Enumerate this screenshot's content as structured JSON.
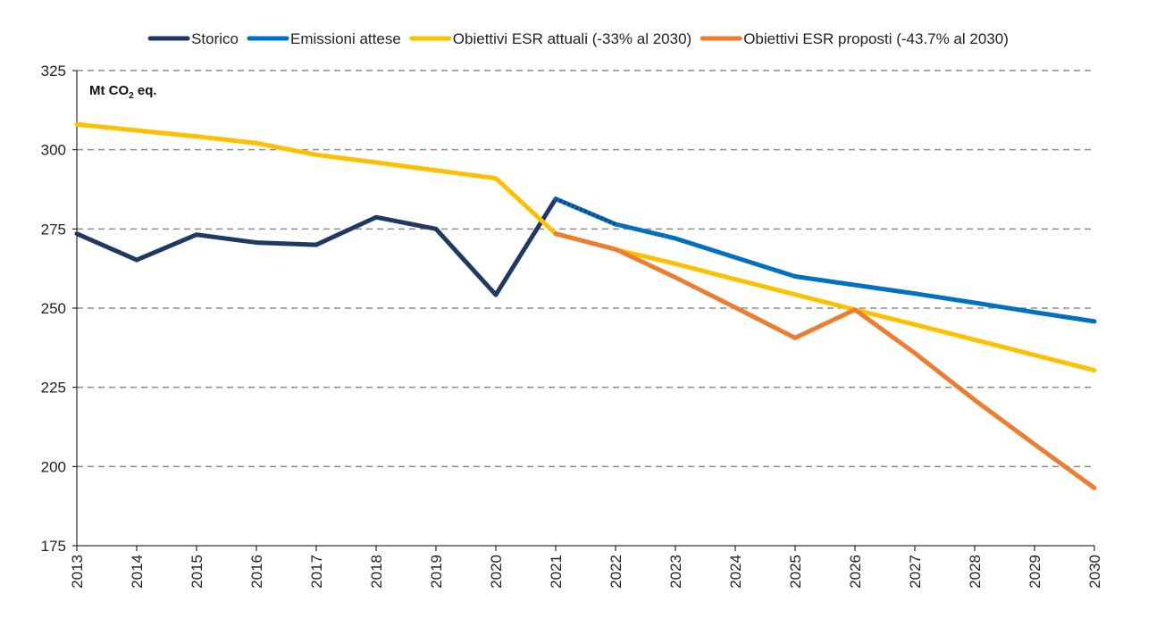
{
  "chart_data": {
    "type": "line",
    "unit_label": {
      "main": "Mt CO",
      "sub": "2",
      "suffix": " eq."
    },
    "x": [
      "2013",
      "2014",
      "2015",
      "2016",
      "2017",
      "2018",
      "2019",
      "2020",
      "2021",
      "2022",
      "2023",
      "2024",
      "2025",
      "2026",
      "2027",
      "2028",
      "2029",
      "2030"
    ],
    "ylim": [
      175,
      325
    ],
    "yticks": [
      175,
      200,
      225,
      250,
      275,
      300,
      325
    ],
    "grid": "horizontal dashed",
    "legend_position": "top",
    "series": [
      {
        "name": "Storico",
        "color": "#1f3864",
        "values": [
          273.5,
          265.2,
          273.2,
          270.7,
          270.0,
          278.7,
          275.0,
          254.2,
          284.5,
          null,
          null,
          null,
          null,
          null,
          null,
          null,
          null,
          null
        ]
      },
      {
        "name": "Emissioni attese",
        "color": "#0070c0",
        "values": [
          null,
          null,
          null,
          null,
          null,
          null,
          null,
          null,
          284.5,
          276.5,
          272.0,
          266.0,
          260.0,
          257.3,
          254.6,
          251.7,
          248.7,
          245.8
        ]
      },
      {
        "name": "Obiettivi ESR attuali (-33% al 2030)",
        "color": "#ffc000",
        "values": [
          308.0,
          306.1,
          304.2,
          302.1,
          298.4,
          296.0,
          293.5,
          291.0,
          273.5,
          268.5,
          264.0,
          259.1,
          254.3,
          249.5,
          244.8,
          240.0,
          235.2,
          230.4
        ]
      },
      {
        "name": "Obiettivi ESR proposti (-43.7% al 2030)",
        "color": "#ed7d31",
        "values": [
          null,
          null,
          null,
          null,
          null,
          null,
          null,
          null,
          273.5,
          268.6,
          259.7,
          250.2,
          240.6,
          249.5,
          235.8,
          221.0,
          207.0,
          193.2
        ]
      }
    ]
  }
}
